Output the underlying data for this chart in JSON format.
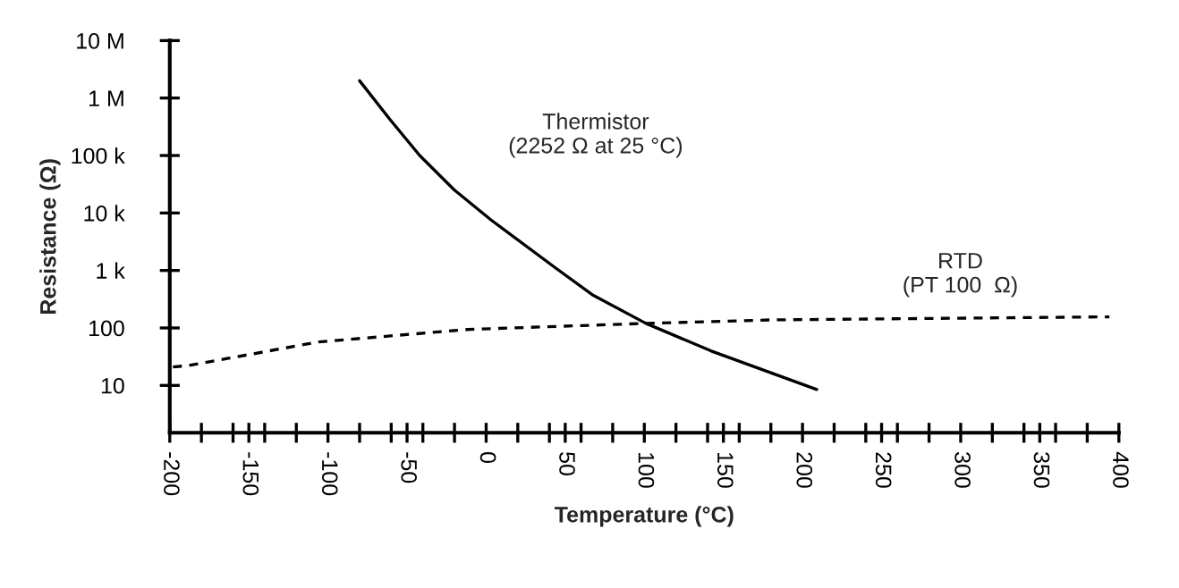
{
  "chart_data": {
    "type": "line",
    "xlabel": "Temperature (°C)",
    "ylabel": "Resistance (Ω)",
    "log": "y",
    "xlim": [
      -200,
      400
    ],
    "ylim": [
      1.5,
      10000000
    ],
    "xticks": [
      -200,
      {
        "value": -180,
        "label": null
      },
      {
        "value": -160,
        "label": null
      },
      -150,
      {
        "value": -140,
        "label": null
      },
      {
        "value": -120,
        "label": null
      },
      -100,
      {
        "value": -80,
        "label": null
      },
      {
        "value": -60,
        "label": null
      },
      -50,
      {
        "value": -40,
        "label": null
      },
      {
        "value": -20,
        "label": null
      },
      0,
      {
        "value": 20,
        "label": null
      },
      {
        "value": 40,
        "label": null
      },
      50,
      {
        "value": 60,
        "label": null
      },
      {
        "value": 80,
        "label": null
      },
      100,
      {
        "value": 120,
        "label": null
      },
      {
        "value": 140,
        "label": null
      },
      150,
      {
        "value": 160,
        "label": null
      },
      {
        "value": 180,
        "label": null
      },
      200,
      {
        "value": 220,
        "label": null
      },
      {
        "value": 240,
        "label": null
      },
      250,
      {
        "value": 260,
        "label": null
      },
      {
        "value": 280,
        "label": null
      },
      300,
      {
        "value": 320,
        "label": null
      },
      {
        "value": 340,
        "label": null
      },
      350,
      {
        "value": 360,
        "label": null
      },
      {
        "value": 380,
        "label": null
      },
      400
    ],
    "yticks": [
      10,
      {
        "value": 100,
        "label": "100"
      },
      {
        "value": 1000,
        "label": "1 k"
      },
      {
        "value": 10000,
        "label": "10 k"
      },
      {
        "value": 100000,
        "label": "100 k"
      },
      {
        "value": 1000000,
        "label": "1 M"
      },
      {
        "value": 10000000,
        "label": "10 M"
      }
    ],
    "grid": false,
    "legend": false,
    "marker": "none",
    "series": [
      {
        "name": "Thermistor\n(2252 Ω at 25 °C)",
        "color": "#000000",
        "line_style": "solid",
        "x": [
          -80,
          -61,
          -42,
          -20,
          3,
          44,
          67,
          101,
          142,
          209
        ],
        "values": [
          2000000,
          430000,
          100000,
          25000,
          7600,
          1100,
          380,
          120,
          40,
          8.5
        ]
      },
      {
        "name": "RTD\n(PT 100  Ω)",
        "color": "#000000",
        "line_style": "dashed",
        "x": [
          -198,
          -189,
          -106,
          -12,
          101,
          180,
          394
        ],
        "values": [
          21,
          22,
          57,
          94,
          120,
          138,
          156
        ]
      }
    ]
  }
}
